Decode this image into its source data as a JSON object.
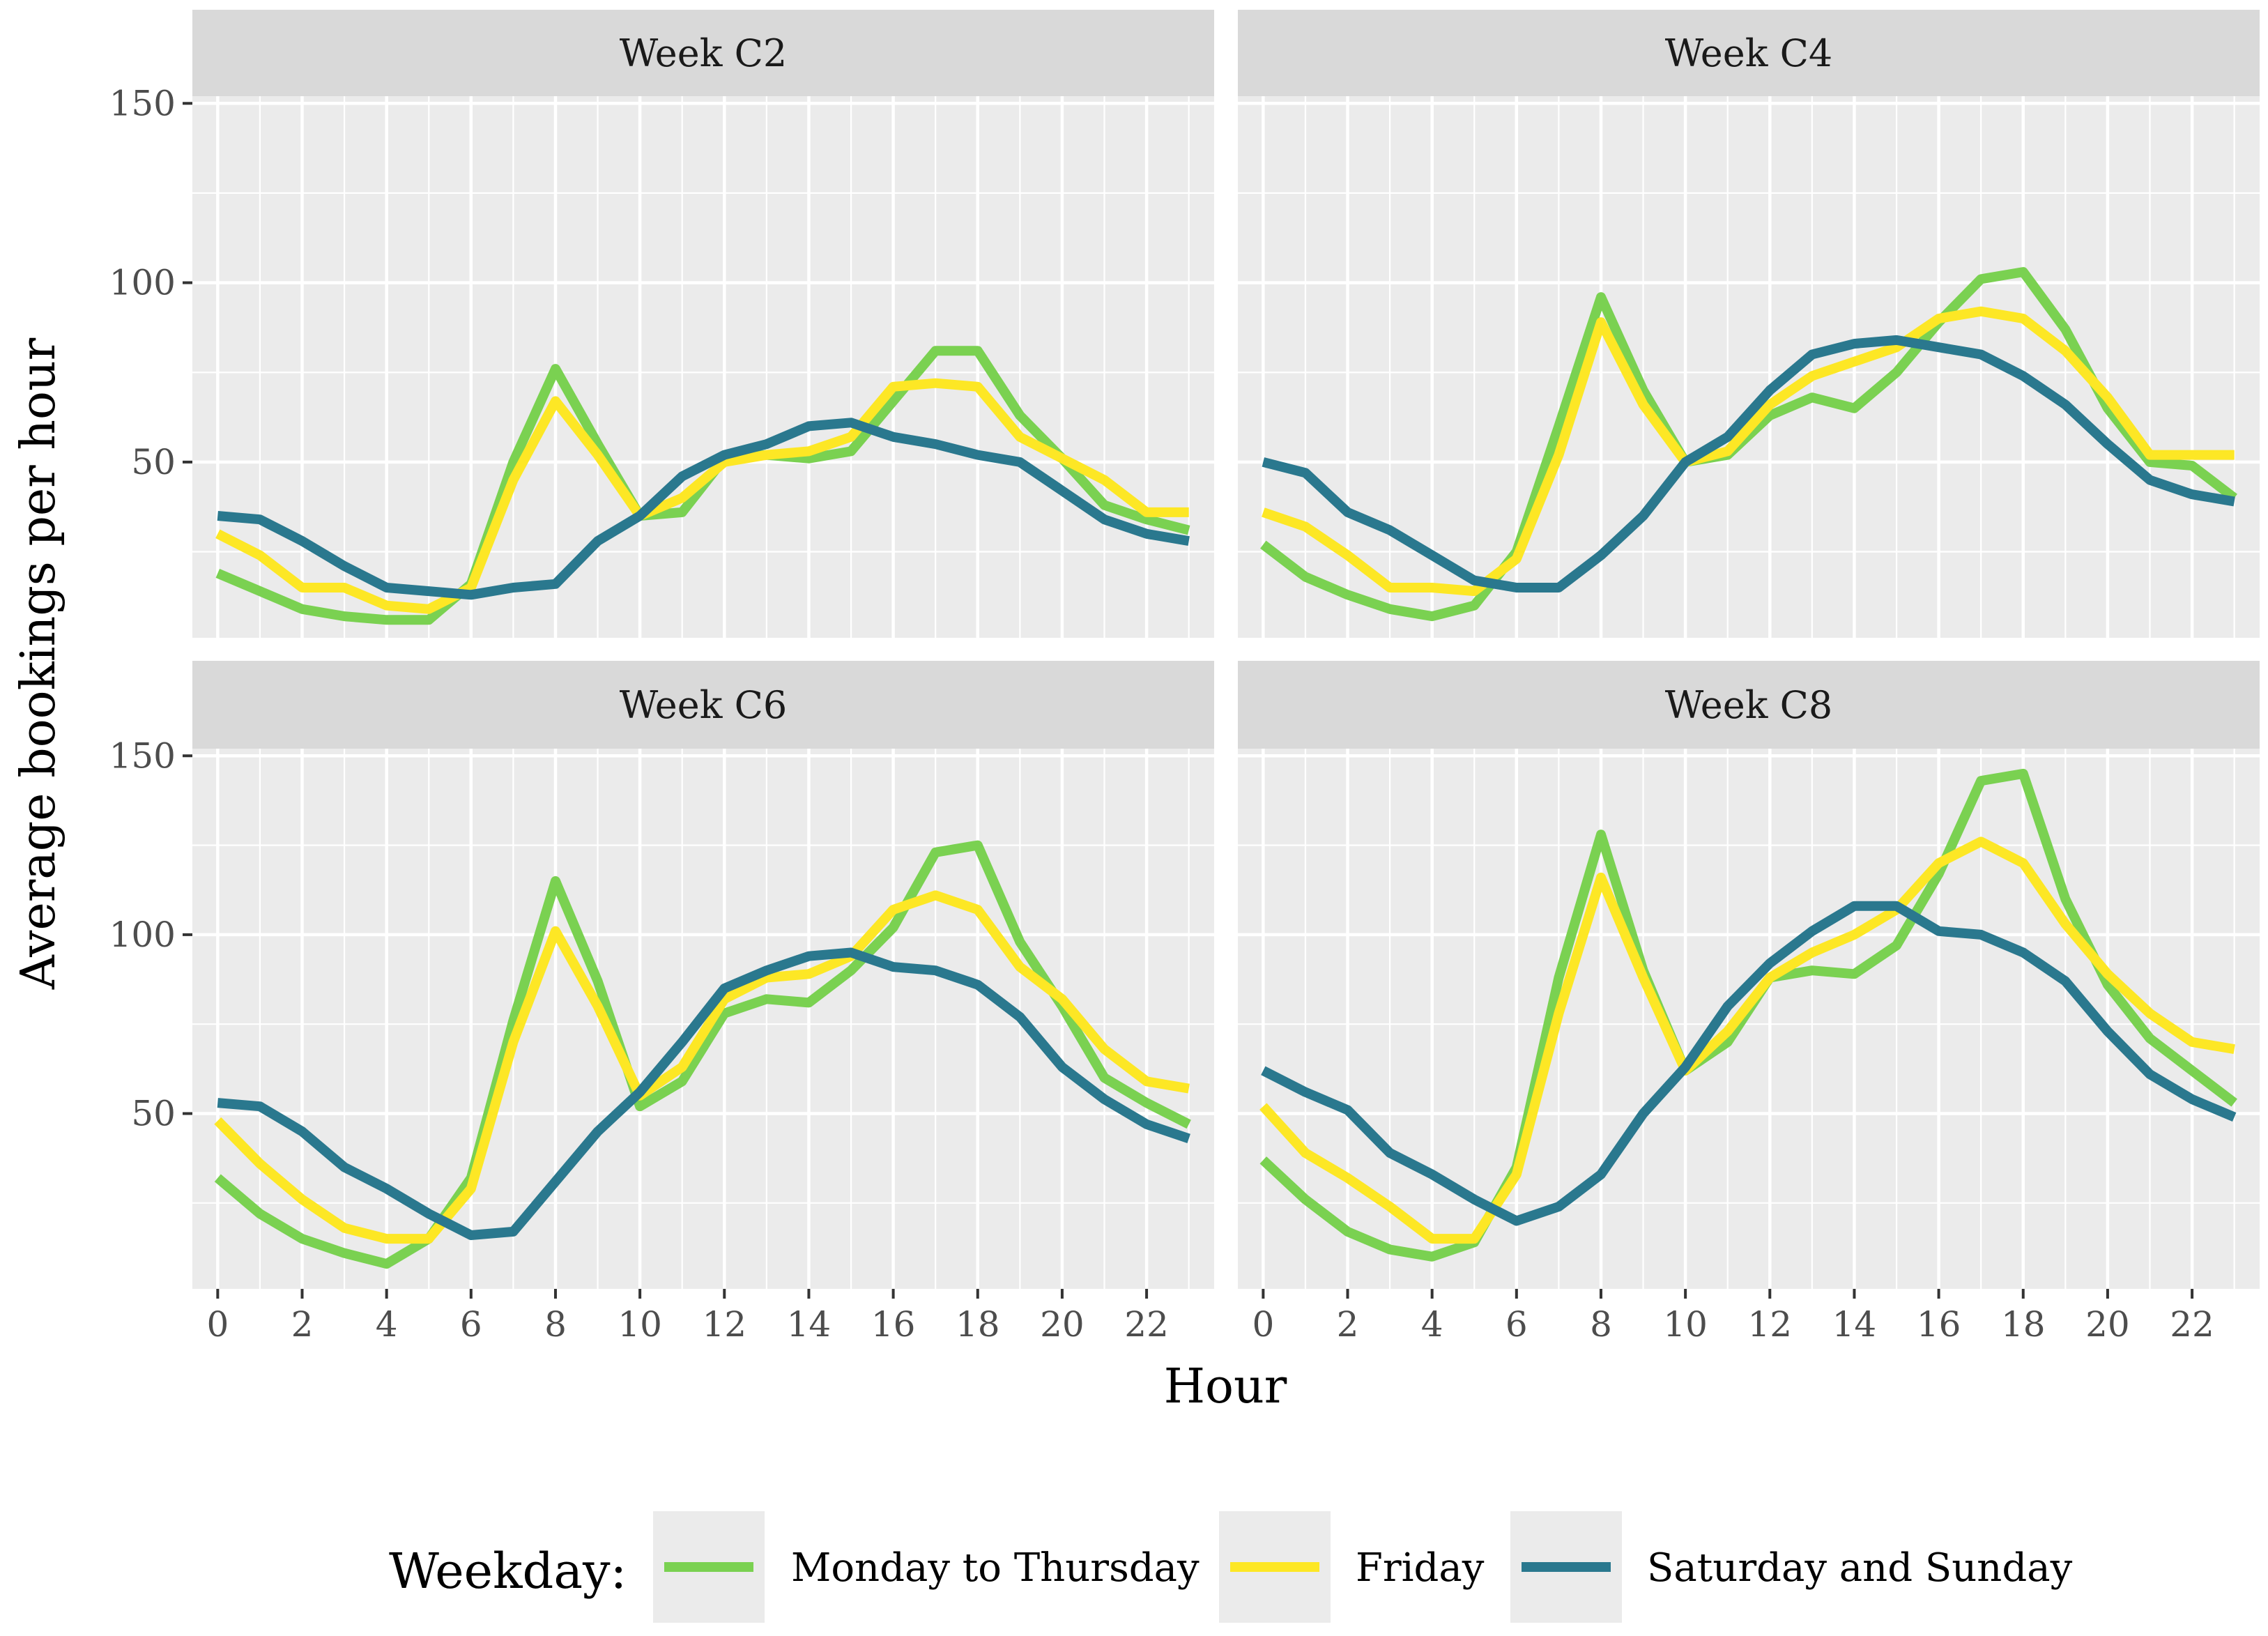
{
  "chart_data": {
    "type": "line",
    "facet_layout": "2x2 grid",
    "xlabel": "Hour",
    "ylabel": "Average bookings per hour",
    "x": [
      0,
      1,
      2,
      3,
      4,
      5,
      6,
      7,
      8,
      9,
      10,
      11,
      12,
      13,
      14,
      15,
      16,
      17,
      18,
      19,
      20,
      21,
      22,
      23
    ],
    "xticks": [
      0,
      2,
      4,
      6,
      8,
      10,
      12,
      14,
      16,
      18,
      20,
      22
    ],
    "xlim": [
      -0.6,
      23.6
    ],
    "yticks": [
      50,
      100,
      150
    ],
    "ylim": [
      1,
      152
    ],
    "grid": true,
    "legend": {
      "title": "Weekday:",
      "position": "bottom",
      "entries": [
        {
          "name": "Monday to Thursday",
          "color": "#7AD151"
        },
        {
          "name": "Friday",
          "color": "#FDE725"
        },
        {
          "name": "Saturday and Sunday",
          "color": "#2A788E"
        }
      ]
    },
    "panels": [
      {
        "title": "Week C2",
        "series": [
          {
            "name": "Monday to Thursday",
            "values": [
              19,
              14,
              9,
              7,
              6,
              6,
              16,
              50,
              76,
              55,
              35,
              36,
              51,
              52,
              51,
              53,
              67,
              81,
              81,
              63,
              51,
              38,
              34,
              31
            ]
          },
          {
            "name": "Friday",
            "values": [
              30,
              24,
              15,
              15,
              10,
              9,
              15,
              45,
              67,
              52,
              35,
              40,
              50,
              52,
              53,
              57,
              71,
              72,
              71,
              57,
              51,
              45,
              36,
              36
            ]
          },
          {
            "name": "Saturday and Sunday",
            "values": [
              35,
              34,
              28,
              21,
              15,
              14,
              13,
              15,
              16,
              28,
              35,
              46,
              52,
              55,
              60,
              61,
              57,
              55,
              52,
              50,
              42,
              34,
              30,
              28
            ]
          }
        ]
      },
      {
        "title": "Week C4",
        "series": [
          {
            "name": "Monday to Thursday",
            "values": [
              27,
              18,
              13,
              9,
              7,
              10,
              25,
              60,
              96,
              70,
              50,
              52,
              63,
              68,
              65,
              75,
              89,
              101,
              103,
              87,
              65,
              50,
              49,
              40
            ]
          },
          {
            "name": "Friday",
            "values": [
              36,
              32,
              24,
              15,
              15,
              14,
              23,
              52,
              89,
              66,
              50,
              53,
              66,
              74,
              78,
              82,
              90,
              92,
              90,
              81,
              68,
              52,
              52,
              52
            ]
          },
          {
            "name": "Saturday and Sunday",
            "values": [
              50,
              47,
              36,
              31,
              24,
              17,
              15,
              15,
              24,
              35,
              50,
              57,
              70,
              80,
              83,
              84,
              82,
              80,
              74,
              66,
              55,
              45,
              41,
              39
            ]
          }
        ]
      },
      {
        "title": "Week C6",
        "series": [
          {
            "name": "Monday to Thursday",
            "values": [
              32,
              22,
              15,
              11,
              8,
              15,
              32,
              76,
              115,
              87,
              52,
              59,
              78,
              82,
              81,
              90,
              102,
              123,
              125,
              98,
              80,
              60,
              53,
              47
            ]
          },
          {
            "name": "Friday",
            "values": [
              48,
              36,
              26,
              18,
              15,
              15,
              29,
              70,
              101,
              80,
              55,
              63,
              82,
              88,
              89,
              94,
              107,
              111,
              107,
              91,
              82,
              68,
              59,
              57
            ]
          },
          {
            "name": "Saturday and Sunday",
            "values": [
              53,
              52,
              45,
              35,
              29,
              22,
              16,
              17,
              31,
              45,
              56,
              70,
              85,
              90,
              94,
              95,
              91,
              90,
              86,
              77,
              63,
              54,
              47,
              43
            ]
          }
        ]
      },
      {
        "title": "Week C8",
        "series": [
          {
            "name": "Monday to Thursday",
            "values": [
              37,
              26,
              17,
              12,
              10,
              14,
              35,
              88,
              128,
              90,
              62,
              70,
              88,
              90,
              89,
              97,
              117,
              143,
              145,
              110,
              86,
              71,
              62,
              53
            ]
          },
          {
            "name": "Friday",
            "values": [
              52,
              39,
              32,
              24,
              15,
              15,
              33,
              78,
              116,
              88,
              62,
              73,
              88,
              95,
              100,
              107,
              120,
              126,
              120,
              103,
              89,
              78,
              70,
              68
            ]
          },
          {
            "name": "Saturday and Sunday",
            "values": [
              62,
              56,
              51,
              39,
              33,
              26,
              20,
              24,
              33,
              50,
              63,
              80,
              92,
              101,
              108,
              108,
              101,
              100,
              95,
              87,
              73,
              61,
              54,
              49
            ]
          }
        ]
      }
    ]
  }
}
